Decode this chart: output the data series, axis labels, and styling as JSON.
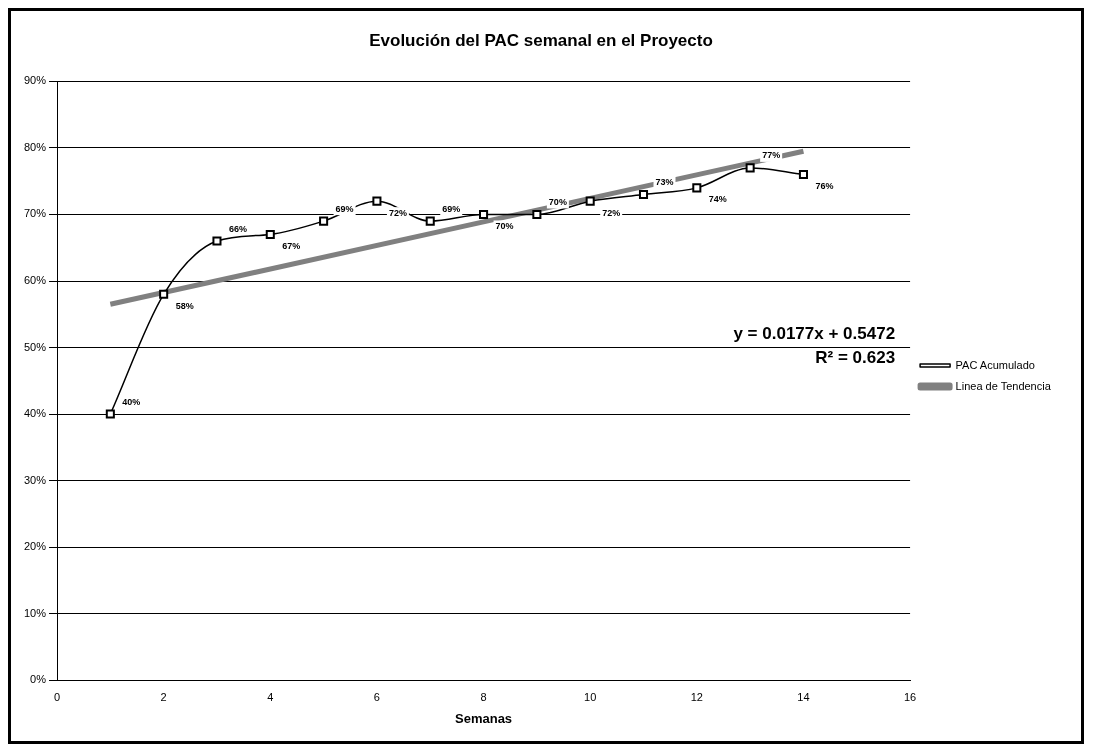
{
  "chart_data": {
    "type": "line",
    "title": "Evolución del PAC semanal en el Proyecto",
    "xlabel": "Semanas",
    "xlim": [
      0,
      16
    ],
    "xticks": [
      0,
      2,
      4,
      6,
      8,
      10,
      12,
      14,
      16
    ],
    "ylim": [
      0,
      90
    ],
    "yticks": [
      {
        "value": 0,
        "label": "0%"
      },
      {
        "value": 10,
        "label": "10%"
      },
      {
        "value": 20,
        "label": "20%"
      },
      {
        "value": 30,
        "label": "30%"
      },
      {
        "value": 40,
        "label": "40%"
      },
      {
        "value": 50,
        "label": "50%"
      },
      {
        "value": 60,
        "label": "60%"
      },
      {
        "value": 70,
        "label": "70%"
      },
      {
        "value": 80,
        "label": "80%"
      },
      {
        "value": 90,
        "label": "90%"
      }
    ],
    "grid": "y",
    "legend": "right",
    "series": [
      {
        "name": "PAC Acumulado",
        "color": "#000000",
        "marker": "square",
        "x": [
          1,
          2,
          3,
          4,
          5,
          6,
          7,
          8,
          9,
          10,
          11,
          12,
          13,
          14
        ],
        "values": [
          40,
          58,
          66,
          67,
          69,
          72,
          69,
          70,
          70,
          72,
          73,
          74,
          77,
          76
        ],
        "value_labels": [
          "40%",
          "58%",
          "66%",
          "67%",
          "69%",
          "72%",
          "69%",
          "70%",
          "70%",
          "72%",
          "73%",
          "74%",
          "77%",
          "76%"
        ]
      },
      {
        "name": "Linea de Tendencia",
        "type": "line",
        "color": "#808080",
        "marker": "none",
        "x": [
          1,
          14
        ],
        "values": [
          56.5,
          79.5
        ]
      }
    ],
    "annotations": [
      "y = 0.0177x + 0.5472",
      "R² = 0.623"
    ]
  }
}
